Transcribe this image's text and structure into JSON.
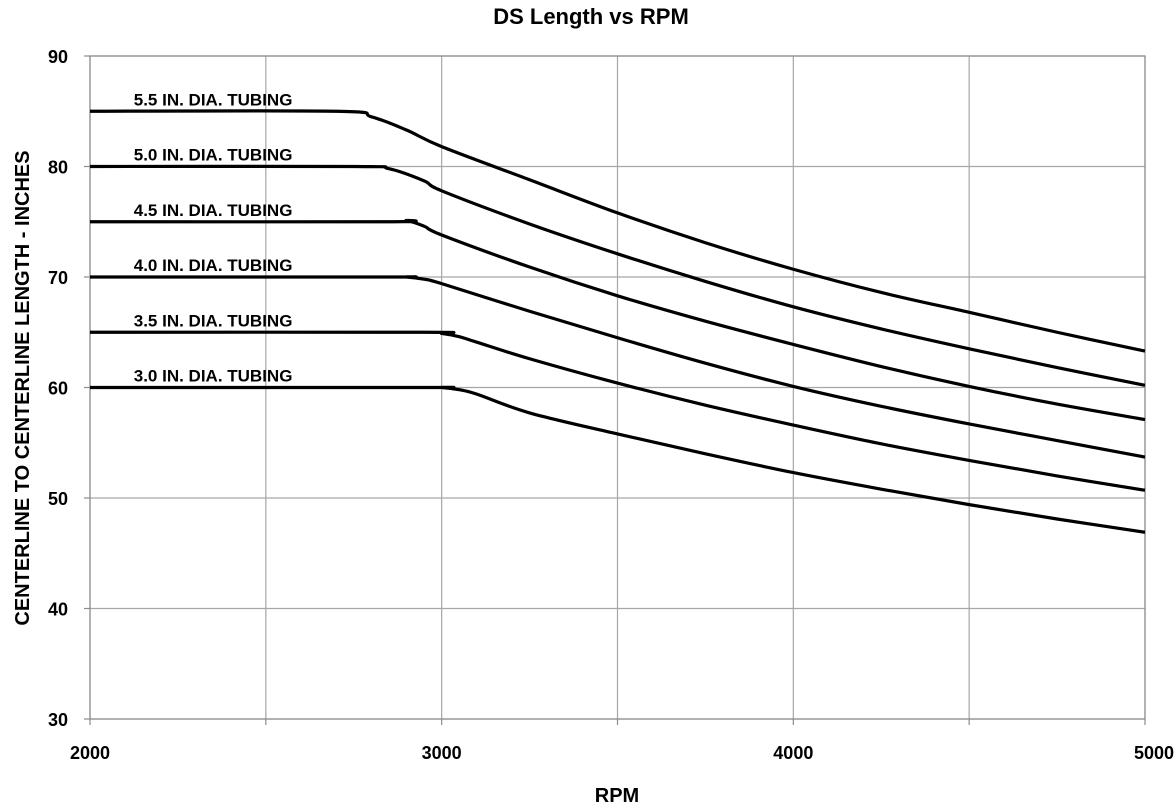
{
  "chart_data": {
    "type": "line",
    "title": "DS Length vs RPM",
    "xlabel": "RPM",
    "ylabel": "CENTERLINE TO CENTERLINE LENGTH - INCHES",
    "xlim": [
      2000,
      5000
    ],
    "ylim": [
      30,
      90
    ],
    "x_ticks": [
      2000,
      3000,
      4000,
      5000
    ],
    "x_tick_labels": [
      "2000",
      "3000",
      "4000",
      "5000"
    ],
    "x_minor_gridlines": [
      2500,
      3500,
      4500
    ],
    "y_ticks": [
      30,
      40,
      50,
      60,
      70,
      80,
      90
    ],
    "y_tick_labels": [
      "30",
      "40",
      "50",
      "60",
      "70",
      "80",
      "90"
    ],
    "grid": true,
    "legend": "none",
    "line_color": "#000000",
    "grid_color": "#a6a6a6",
    "series": [
      {
        "name": "5.5 IN. DIA. TUBING",
        "x": [
          2000,
          2700,
          2800,
          2900,
          3000,
          3250,
          3500,
          3750,
          4000,
          4250,
          4500,
          4750,
          5000
        ],
        "y": [
          85.0,
          85.0,
          84.5,
          83.3,
          81.8,
          78.8,
          75.8,
          73.1,
          70.7,
          68.6,
          66.8,
          65.0,
          63.3
        ]
      },
      {
        "name": "5.0 IN. DIA. TUBING",
        "x": [
          2000,
          2750,
          2850,
          2950,
          3000,
          3250,
          3500,
          3750,
          4000,
          4250,
          4500,
          4750,
          5000
        ],
        "y": [
          80.0,
          80.0,
          79.8,
          78.7,
          77.8,
          74.8,
          72.1,
          69.6,
          67.3,
          65.3,
          63.5,
          61.8,
          60.2
        ]
      },
      {
        "name": "4.5 IN. DIA. TUBING",
        "x": [
          2000,
          2850,
          2900,
          2950,
          3000,
          3250,
          3500,
          3750,
          4000,
          4250,
          4500,
          4750,
          5000
        ],
        "y": [
          75.0,
          75.0,
          75.1,
          74.6,
          73.8,
          70.9,
          68.3,
          66.0,
          63.9,
          61.9,
          60.1,
          58.5,
          57.1
        ]
      },
      {
        "name": "4.0 IN. DIA. TUBING",
        "x": [
          2000,
          2850,
          2900,
          2950,
          3000,
          3250,
          3500,
          3750,
          4000,
          4250,
          4500,
          4750,
          5000
        ],
        "y": [
          70.0,
          70.0,
          70.0,
          69.8,
          69.4,
          66.9,
          64.5,
          62.2,
          60.1,
          58.3,
          56.7,
          55.2,
          53.7
        ]
      },
      {
        "name": "3.5 IN. DIA. TUBING",
        "x": [
          2000,
          2950,
          3000,
          3050,
          3100,
          3250,
          3500,
          3750,
          4000,
          4250,
          4500,
          4750,
          5000
        ],
        "y": [
          65.0,
          65.0,
          64.9,
          64.6,
          64.1,
          62.6,
          60.4,
          58.4,
          56.6,
          54.9,
          53.4,
          52.0,
          50.7
        ]
      },
      {
        "name": "3.0 IN. DIA. TUBING",
        "x": [
          2000,
          2950,
          3000,
          3050,
          3100,
          3250,
          3500,
          3750,
          4000,
          4250,
          4500,
          4750,
          5000
        ],
        "y": [
          60.0,
          60.0,
          60.0,
          59.8,
          59.4,
          57.7,
          55.8,
          54.0,
          52.3,
          50.8,
          49.4,
          48.1,
          46.9
        ]
      }
    ]
  }
}
